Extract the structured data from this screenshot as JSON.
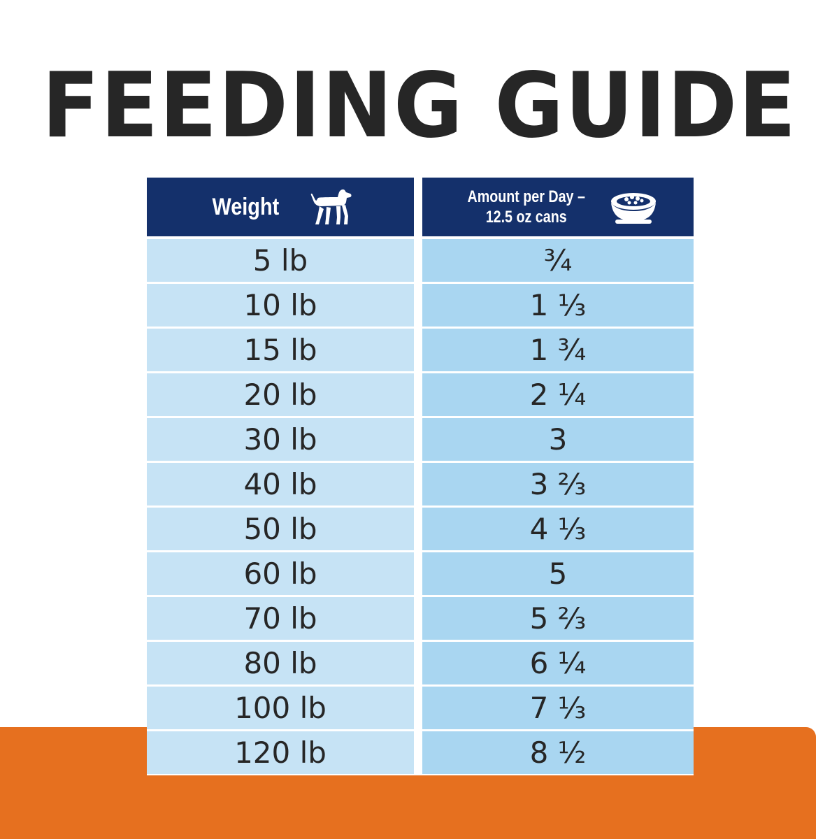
{
  "title": "FEEDING GUIDE",
  "colors": {
    "header_blue": "#14306b",
    "cell_left": "#c6e3f5",
    "cell_right": "#a9d6f1",
    "orange": "#e6701f",
    "title_text": "#262626"
  },
  "table": {
    "headers": {
      "weight": "Weight",
      "weight_icon": "dog-icon",
      "amount_line1": "Amount per Day –",
      "amount_line2": "12.5 oz cans",
      "amount_icon": "food-bowl-icon"
    },
    "rows": [
      {
        "weight": "5 lb",
        "amount": "¾"
      },
      {
        "weight": "10 lb",
        "amount": "1 ⅓"
      },
      {
        "weight": "15 lb",
        "amount": "1 ¾"
      },
      {
        "weight": "20 lb",
        "amount": "2 ¼"
      },
      {
        "weight": "30 lb",
        "amount": "3"
      },
      {
        "weight": "40 lb",
        "amount": "3 ⅔"
      },
      {
        "weight": "50 lb",
        "amount": "4 ⅓"
      },
      {
        "weight": "60 lb",
        "amount": "5"
      },
      {
        "weight": "70 lb",
        "amount": "5 ⅔"
      },
      {
        "weight": "80 lb",
        "amount": "6 ¼"
      },
      {
        "weight": "100 lb",
        "amount": "7 ⅓"
      },
      {
        "weight": "120 lb",
        "amount": "8 ½"
      }
    ]
  }
}
